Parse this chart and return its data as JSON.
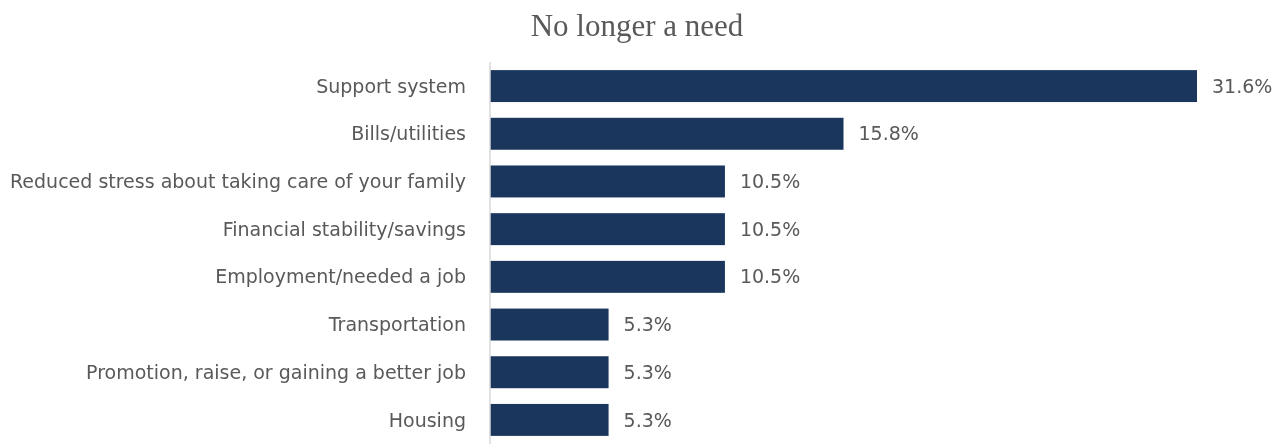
{
  "chart_data": {
    "type": "bar",
    "orientation": "horizontal",
    "title": "No longer a need",
    "categories": [
      "Support system",
      "Bills/utilities",
      "Reduced stress about taking care of your family",
      "Financial stability/savings",
      "Employment/needed a job",
      "Transportation",
      "Promotion, raise, or gaining a better job",
      "Housing"
    ],
    "values": [
      31.6,
      15.8,
      10.5,
      10.5,
      10.5,
      5.3,
      5.3,
      5.3
    ],
    "value_labels": [
      "31.6%",
      "15.8%",
      "10.5%",
      "10.5%",
      "10.5%",
      "5.3%",
      "5.3%",
      "5.3%"
    ],
    "color": "#1b365d"
  }
}
